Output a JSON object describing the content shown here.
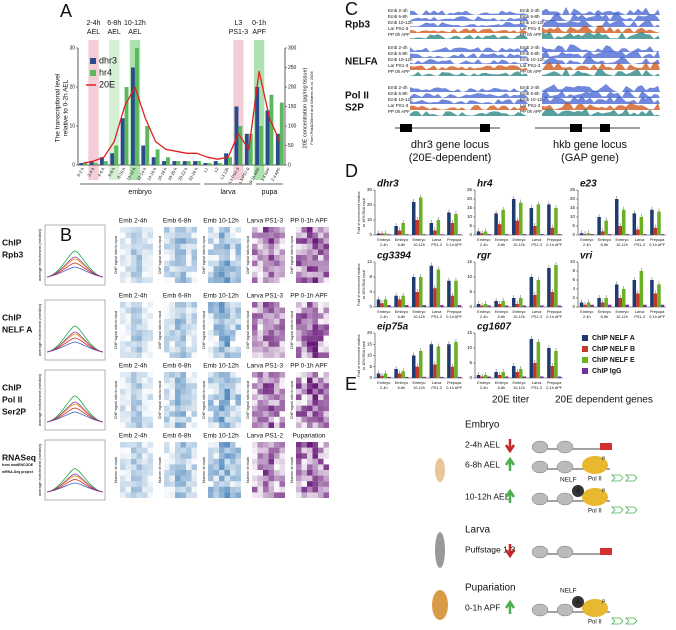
{
  "panel_labels": [
    "A",
    "B",
    "C",
    "D",
    "E"
  ],
  "panel_a": {
    "type": "bar",
    "stages": [
      {
        "label": [
          "2-4h",
          "AEL"
        ],
        "color": "#f2c6cf"
      },
      {
        "label": [
          "6-8h",
          "AEL"
        ],
        "color": "#cdeccd"
      },
      {
        "label": [
          "10-12h",
          "AEL"
        ],
        "color": "#9fdc9f"
      },
      {
        "label": [
          "L3",
          "PS1-3"
        ],
        "color": "#f2c6cf"
      },
      {
        "label": [
          "0-1h",
          "APF"
        ],
        "color": "#9fdc9f"
      }
    ],
    "categories": [
      "0-2 h",
      "2-4 h",
      "4-6 h",
      "6-8 h",
      "8-10 h",
      "10-12 h",
      "12-14 h",
      "14-16 h",
      "16-18 h",
      "18-20 h",
      "20-22 h",
      "22-24 h",
      "L1",
      "L2",
      "L3 12h",
      "L3 PS1-3",
      "L3 PS7-9",
      "0-1h APF",
      "1 d APF",
      "2 d APF"
    ],
    "series": [
      {
        "name": "dhr3",
        "color": "#2b4c8c",
        "values": [
          0.5,
          1,
          2,
          3,
          12,
          25,
          5,
          2,
          1,
          1,
          1,
          1,
          0.5,
          1,
          3,
          15,
          8,
          20,
          14,
          8
        ]
      },
      {
        "name": "hr4",
        "color": "#5cb85c",
        "values": [
          0.5,
          0.5,
          1,
          5,
          20,
          30,
          10,
          4,
          2,
          1,
          1,
          1,
          0.5,
          0.5,
          2,
          10,
          8,
          10,
          18,
          16
        ]
      }
    ],
    "line": {
      "name": "20E",
      "color": "#e02020",
      "values": [
        5,
        10,
        20,
        60,
        150,
        200,
        120,
        60,
        40,
        35,
        30,
        30,
        20,
        15,
        20,
        80,
        40,
        240,
        120,
        60
      ]
    },
    "ylim": [
      0,
      30
    ],
    "yticks": [
      0,
      10,
      20,
      30
    ],
    "y2lim": [
      0,
      300
    ],
    "y2ticks": [
      0,
      50,
      100,
      150,
      200,
      250,
      300
    ],
    "y_label": [
      "The transcriptional level",
      "relative to 0-2h AEL"
    ],
    "y2_label": [
      "20E concentration (pg/mg tissue)",
      "From Pak&Gilbert and Warren et al. 2006"
    ],
    "groups": [
      "embryo",
      "larva",
      "pupa"
    ]
  },
  "panel_b": {
    "rows": [
      [
        "ChIP",
        "Rpb3"
      ],
      [
        "ChIP",
        "NELF A"
      ],
      [
        "ChIP",
        "Pol II",
        "Ser2P"
      ],
      [
        "RNASeq",
        "from modENCODE",
        "mRNA-Seq project"
      ]
    ],
    "columns": [
      "Emb 2-4h",
      "Emb 6-8h",
      "Emb 10-12h",
      "Larva PS1-3",
      "PP 0-1h APF"
    ],
    "rnaseq_columns": [
      "Emb 2-4h",
      "Emb 6-8h",
      "Emb 10-12h",
      "Larva PS1-2",
      "Pupariation"
    ],
    "profile_y_label": "average enrichment (median)",
    "heatmap_y_label": "ChIP signal ratio to input",
    "rnaseq_y_label": "Number of reads"
  },
  "panel_c": {
    "tracks": [
      "Rpb3",
      "NELFA",
      [
        "Pol II",
        "S2P"
      ]
    ],
    "samples": [
      "Emb 2-4h",
      "Emb 6-8h",
      "Emb 10-12h",
      "Lar PS1-3",
      "PP 0h APF"
    ],
    "loci": [
      [
        "dhr3 gene locus",
        "(20E-dependent)"
      ],
      [
        "hkb gene locus",
        "(GAP gene)"
      ]
    ]
  },
  "panel_d": {
    "type": "bar",
    "y_label": [
      "Fold of enrichment relative",
      "to 10% RNA input"
    ],
    "categories": [
      [
        "Embryo",
        "2-4h"
      ],
      [
        "Embryo",
        "6-8h"
      ],
      [
        "Embryo",
        "10-12h"
      ],
      [
        "Larva",
        "PS1-3"
      ],
      [
        "Prepupa",
        "0-1h APF"
      ]
    ],
    "series": [
      {
        "name": "ChIP NELF A",
        "color": "#1f3a6e"
      },
      {
        "name": "ChIP NELF B",
        "color": "#c0392b"
      },
      {
        "name": "ChIP NELF E",
        "color": "#6ab023"
      },
      {
        "name": "ChIP IgG",
        "color": "#7030a0"
      }
    ],
    "charts": [
      {
        "name": "dhr3",
        "ylim": [
          0,
          30
        ],
        "yticks": [
          0,
          10,
          20,
          30
        ],
        "values": [
          [
            1,
            6,
            22,
            8,
            15
          ],
          [
            1,
            3,
            10,
            3,
            8
          ],
          [
            1,
            8,
            25,
            10,
            14
          ],
          [
            0.5,
            0.5,
            0.5,
            0.5,
            0.5
          ]
        ]
      },
      {
        "name": "hr4",
        "ylim": [
          0,
          25
        ],
        "yticks": [
          0,
          5,
          10,
          15,
          20,
          25
        ],
        "values": [
          [
            2,
            12,
            20,
            15,
            17
          ],
          [
            1,
            6,
            8,
            5,
            4
          ],
          [
            2,
            14,
            18,
            17,
            15
          ],
          [
            0.5,
            0.5,
            0.5,
            0.5,
            0.5
          ]
        ]
      },
      {
        "name": "e23",
        "ylim": [
          0,
          25
        ],
        "yticks": [
          0,
          5,
          10,
          15,
          20,
          25
        ],
        "values": [
          [
            1,
            10,
            20,
            12,
            14
          ],
          [
            0.5,
            2,
            5,
            3,
            4
          ],
          [
            1,
            8,
            14,
            10,
            13
          ],
          [
            0.5,
            0.5,
            0.5,
            0.5,
            0.5
          ]
        ]
      },
      {
        "name": "cg3394",
        "ylim": [
          0,
          12
        ],
        "yticks": [
          0,
          4,
          8,
          12
        ],
        "values": [
          [
            2,
            3,
            8,
            11,
            7
          ],
          [
            1,
            2,
            4,
            5,
            3
          ],
          [
            2,
            3,
            8,
            10,
            7
          ],
          [
            0.5,
            0.5,
            0.5,
            0.5,
            0.5
          ]
        ]
      },
      {
        "name": "rgr",
        "ylim": [
          0,
          15
        ],
        "yticks": [
          0,
          5,
          10,
          15
        ],
        "values": [
          [
            1,
            2,
            3,
            10,
            13
          ],
          [
            0.5,
            1,
            1,
            4,
            5
          ],
          [
            1,
            2,
            3,
            9,
            14
          ],
          [
            0.5,
            0.5,
            0.5,
            0.5,
            0.5
          ]
        ]
      },
      {
        "name": "vri",
        "ylim": [
          0,
          10
        ],
        "yticks": [
          0,
          2,
          4,
          6,
          8,
          10
        ],
        "values": [
          [
            1,
            2,
            5,
            6,
            6
          ],
          [
            0.5,
            1,
            2,
            3,
            3
          ],
          [
            1,
            2,
            4,
            8,
            5
          ],
          [
            0.5,
            0.5,
            0.5,
            0.5,
            0.5
          ]
        ]
      },
      {
        "name": "eip75a",
        "ylim": [
          0,
          20
        ],
        "yticks": [
          0,
          5,
          10,
          15,
          20
        ],
        "values": [
          [
            2,
            4,
            10,
            15,
            15
          ],
          [
            1,
            2,
            5,
            6,
            5
          ],
          [
            2,
            3,
            12,
            14,
            16
          ],
          [
            0.5,
            0.5,
            0.5,
            0.5,
            0.5
          ]
        ]
      },
      {
        "name": "cg1607",
        "ylim": [
          0,
          15
        ],
        "yticks": [
          0,
          5,
          10,
          15
        ],
        "values": [
          [
            1,
            2,
            4,
            13,
            10
          ],
          [
            0.5,
            1,
            2,
            5,
            4
          ],
          [
            1,
            2,
            3,
            12,
            9
          ],
          [
            0.5,
            0.5,
            0.5,
            0.5,
            0.5
          ]
        ]
      }
    ]
  },
  "panel_e": {
    "headers": [
      "20E titer",
      "20E dependent genes"
    ],
    "rows": [
      {
        "stage": "Embryo",
        "times": [
          "2-4h AEL",
          "6-8h AEL",
          "10-12h AEL"
        ]
      },
      {
        "stage": "Larva",
        "times": [
          "Puffstage 1-3"
        ]
      },
      {
        "stage": "Pupariation",
        "times": [
          "0-1h APF"
        ]
      }
    ],
    "labels": {
      "nelf": "NELF",
      "pol": "Pol II",
      "a": "A",
      "p": "P"
    }
  }
}
